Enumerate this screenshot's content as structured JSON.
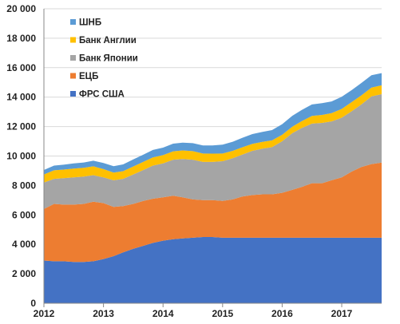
{
  "chart_data": {
    "type": "area",
    "stacked": true,
    "ylim": [
      0,
      20000
    ],
    "yticks": [
      "0",
      "2 000",
      "4 000",
      "6 000",
      "8 000",
      "10 000",
      "12 000",
      "14 000",
      "16 000",
      "18 000",
      "20 000"
    ],
    "x_range": [
      2012.0,
      2017.67
    ],
    "xticks": [
      {
        "value": 2012,
        "label": "2012"
      },
      {
        "value": 2013,
        "label": "2013"
      },
      {
        "value": 2014,
        "label": "2014"
      },
      {
        "value": 2015,
        "label": "2015"
      },
      {
        "value": 2016,
        "label": "2016"
      },
      {
        "value": 2017,
        "label": "2017"
      }
    ],
    "grid": "horizontal",
    "legend_position": "top-left",
    "x": [
      2012.0,
      2012.17,
      2012.33,
      2012.5,
      2012.67,
      2012.83,
      2013.0,
      2013.17,
      2013.33,
      2013.5,
      2013.67,
      2013.83,
      2014.0,
      2014.17,
      2014.33,
      2014.5,
      2014.67,
      2014.83,
      2015.0,
      2015.17,
      2015.33,
      2015.5,
      2015.67,
      2015.83,
      2016.0,
      2016.17,
      2016.33,
      2016.5,
      2016.67,
      2016.83,
      2017.0,
      2017.17,
      2017.33,
      2017.5,
      2017.67
    ],
    "series": [
      {
        "name": "ФРС США",
        "color": "#4472c4",
        "values": [
          2900,
          2850,
          2850,
          2800,
          2800,
          2850,
          3000,
          3200,
          3450,
          3700,
          3900,
          4100,
          4250,
          4350,
          4400,
          4450,
          4500,
          4500,
          4450,
          4450,
          4450,
          4450,
          4450,
          4450,
          4450,
          4450,
          4450,
          4450,
          4450,
          4450,
          4450,
          4450,
          4450,
          4450,
          4450
        ]
      },
      {
        "name": "ЕЦБ",
        "color": "#ed7d31",
        "values": [
          3500,
          3900,
          3850,
          3900,
          3950,
          4050,
          3800,
          3350,
          3150,
          3050,
          3050,
          3000,
          2950,
          2950,
          2800,
          2600,
          2500,
          2500,
          2500,
          2600,
          2800,
          2900,
          2950,
          2950,
          3050,
          3250,
          3450,
          3700,
          3700,
          3900,
          4100,
          4500,
          4800,
          5000,
          5100
        ]
      },
      {
        "name": "Банк Японии",
        "color": "#a5a5a5",
        "values": [
          1800,
          1700,
          1800,
          1850,
          1850,
          1800,
          1750,
          1800,
          1850,
          2000,
          2100,
          2250,
          2300,
          2450,
          2600,
          2700,
          2600,
          2600,
          2700,
          2800,
          2850,
          3000,
          3100,
          3200,
          3500,
          3850,
          4000,
          4050,
          4100,
          4000,
          4050,
          4100,
          4250,
          4600,
          4650
        ]
      },
      {
        "name": "Банк Англии",
        "color": "#ffc000",
        "values": [
          550,
          580,
          580,
          600,
          600,
          600,
          560,
          520,
          520,
          540,
          560,
          560,
          560,
          570,
          580,
          580,
          570,
          560,
          520,
          500,
          490,
          480,
          460,
          460,
          440,
          440,
          470,
          520,
          540,
          560,
          600,
          620,
          620,
          600,
          600
        ]
      },
      {
        "name": "ШНБ",
        "color": "#5b9bd5",
        "values": [
          300,
          320,
          330,
          350,
          360,
          380,
          420,
          440,
          460,
          480,
          490,
          500,
          510,
          520,
          530,
          540,
          550,
          560,
          600,
          620,
          640,
          660,
          680,
          700,
          720,
          740,
          760,
          780,
          800,
          800,
          820,
          820,
          840,
          840,
          830
        ]
      }
    ],
    "legend_order": [
      4,
      3,
      2,
      1,
      0
    ]
  }
}
